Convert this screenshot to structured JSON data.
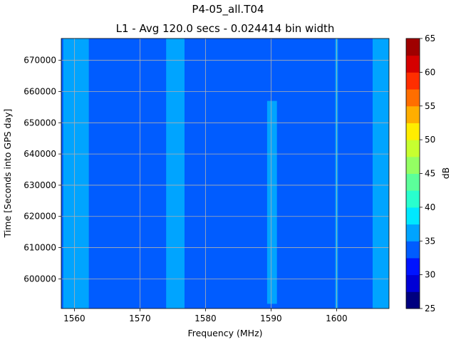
{
  "chart_data": {
    "type": "heatmap",
    "title": "P4-05_all.T04",
    "subtitle": "L1 - Avg 120.0 secs - 0.024414 bin width",
    "xlabel": "Frequency (MHz)",
    "ylabel": "Time [Seconds into GPS day]",
    "colorbar_label": "dB",
    "xlim": [
      1558,
      1608
    ],
    "ylim": [
      590500,
      677000
    ],
    "x_ticks": [
      1560,
      1570,
      1580,
      1590,
      1600
    ],
    "y_ticks": [
      600000,
      610000,
      620000,
      630000,
      640000,
      650000,
      660000,
      670000
    ],
    "x_tick_labels": [
      "1560",
      "1570",
      "1580",
      "1590",
      "1600"
    ],
    "y_tick_labels": [
      "600000",
      "610000",
      "620000",
      "630000",
      "640000",
      "650000",
      "660000",
      "670000"
    ],
    "colorbar": {
      "levels": [
        25,
        27.5,
        30,
        32.5,
        35,
        37.5,
        40,
        42.5,
        45,
        47.5,
        50,
        52.5,
        55,
        57.5,
        60,
        62.5,
        65
      ],
      "tick_values": [
        25,
        30,
        35,
        40,
        45,
        50,
        55,
        60,
        65
      ],
      "tick_labels": [
        "25",
        "30",
        "35",
        "40",
        "45",
        "50",
        "55",
        "60",
        "65"
      ],
      "colors": [
        "#00007f",
        "#0000d5",
        "#0014ff",
        "#005cff",
        "#00a4ff",
        "#00e8ff",
        "#29ffce",
        "#5cff9a",
        "#94ff63",
        "#c7ff30",
        "#ffed00",
        "#ffae00",
        "#ff6e00",
        "#ff2e00",
        "#d50000",
        "#9f0000"
      ]
    },
    "background_level_db": 33.75,
    "bands": [
      {
        "x_start": 1558.3,
        "x_end": 1562.2,
        "level_db": 36.25
      },
      {
        "x_start": 1574.0,
        "x_end": 1576.8,
        "level_db": 36.25
      },
      {
        "x_start": 1589.4,
        "x_end": 1590.9,
        "level_db": 36.25,
        "y_start": 592000,
        "y_end": 657000
      },
      {
        "x_start": 1599.8,
        "x_end": 1600.2,
        "level_db": 36.25
      },
      {
        "x_start": 1605.5,
        "x_end": 1608.0,
        "level_db": 36.25
      }
    ],
    "grid": true
  }
}
